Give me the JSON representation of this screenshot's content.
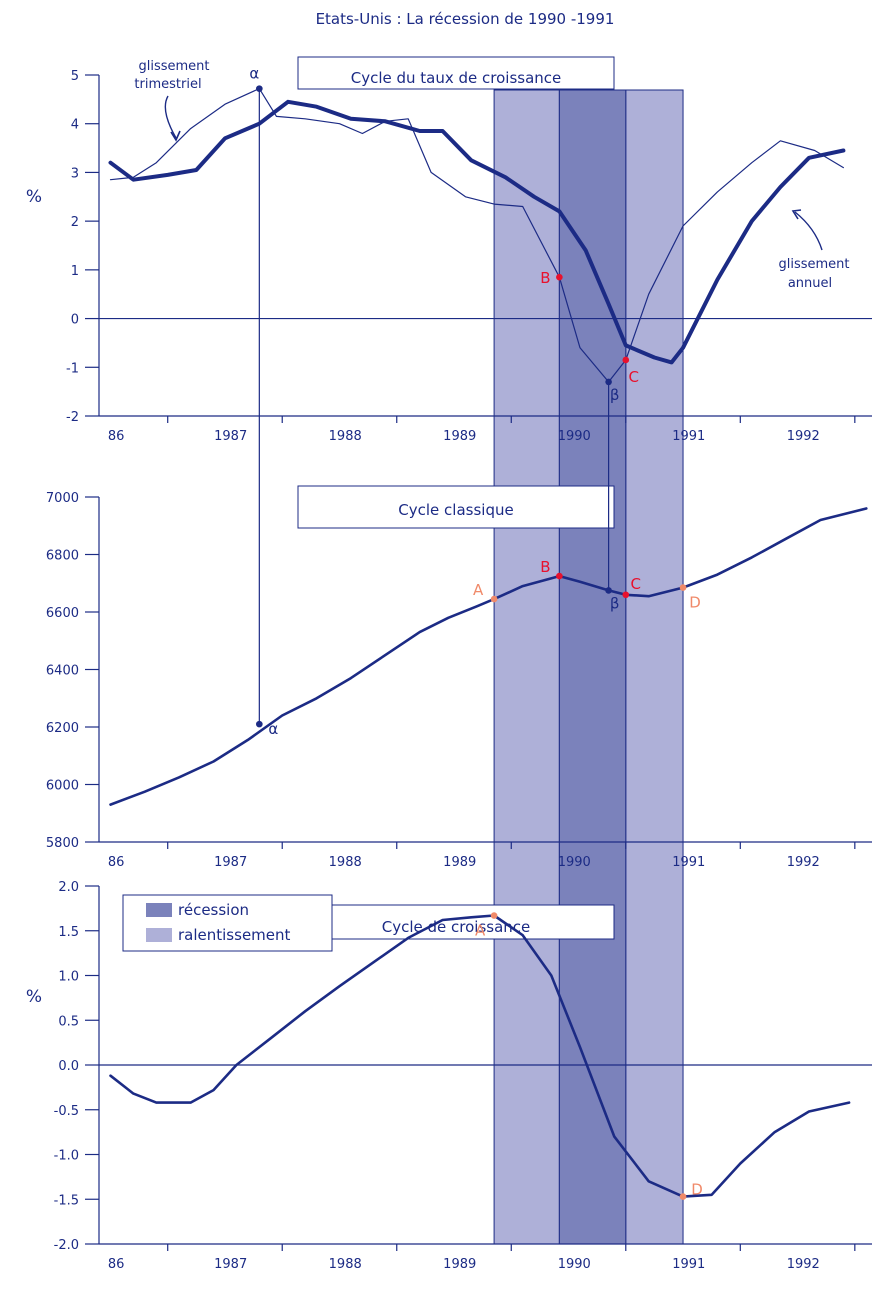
{
  "title": "Etats-Unis : La récession de 1990 -1991",
  "colors": {
    "axis": "#1c2b85",
    "line": "#1c2b85",
    "recession": "#7b82bb",
    "slowdown": "#aeb0d8",
    "point_red": "#e8112d",
    "point_orange": "#f08a6a"
  },
  "legend": {
    "recession": "récession",
    "slowdown": "ralentissement"
  },
  "chart_data": [
    {
      "type": "line",
      "title": "Cycle du taux de croissance",
      "ylabel": "%",
      "ylim": [
        -2,
        5
      ],
      "xlim": [
        1985.9,
        1992.65
      ],
      "yticks": [
        "5",
        "4",
        "3",
        "2",
        "1",
        "0",
        "-1",
        "-2"
      ],
      "xticks": [
        "86",
        "1987",
        "1988",
        "1989",
        "1990",
        "1991",
        "1992"
      ],
      "recession": [
        1989.92,
        1990.5
      ],
      "slowdown": [
        [
          1989.35,
          1989.92
        ],
        [
          1990.5,
          1991.0
        ]
      ],
      "annotations": [
        "glissement trimestriel",
        "glissement annuel"
      ],
      "series": [
        {
          "name": "glissement trimestriel",
          "x": [
            1986.0,
            1986.2,
            1986.4,
            1986.7,
            1987.0,
            1987.3,
            1987.45,
            1987.7,
            1988.0,
            1988.2,
            1988.4,
            1988.6,
            1988.8,
            1989.1,
            1989.35,
            1989.6,
            1989.92,
            1990.1,
            1990.35,
            1990.5,
            1990.7,
            1991.0,
            1991.3,
            1991.6,
            1991.85,
            1992.15,
            1992.4
          ],
          "values": [
            2.85,
            2.9,
            3.2,
            3.9,
            4.4,
            4.72,
            4.15,
            4.1,
            4.0,
            3.8,
            4.05,
            4.1,
            3.0,
            2.5,
            2.35,
            2.3,
            0.85,
            -0.6,
            -1.3,
            -0.85,
            0.5,
            1.9,
            2.6,
            3.2,
            3.65,
            3.45,
            3.1
          ]
        },
        {
          "name": "glissement annuel",
          "x": [
            1986.0,
            1986.2,
            1986.5,
            1986.75,
            1987.0,
            1987.3,
            1987.55,
            1987.8,
            1988.1,
            1988.4,
            1988.7,
            1988.9,
            1989.15,
            1989.45,
            1989.7,
            1989.92,
            1990.15,
            1990.35,
            1990.5,
            1990.75,
            1990.9,
            1991.0,
            1991.3,
            1991.6,
            1991.85,
            1992.1,
            1992.4
          ],
          "values": [
            3.2,
            2.85,
            2.95,
            3.05,
            3.7,
            4.0,
            4.45,
            4.35,
            4.1,
            4.05,
            3.85,
            3.85,
            3.25,
            2.9,
            2.5,
            2.2,
            1.4,
            0.3,
            -0.55,
            -0.8,
            -0.9,
            -0.6,
            0.8,
            2.0,
            2.7,
            3.3,
            3.45
          ]
        }
      ],
      "points": [
        {
          "label": "α",
          "x": 1987.3,
          "y": 4.72
        },
        {
          "label": "B",
          "x": 1989.92,
          "y": 0.85
        },
        {
          "label": "β",
          "x": 1990.35,
          "y": -1.3
        },
        {
          "label": "C",
          "x": 1990.5,
          "y": -0.85
        }
      ]
    },
    {
      "type": "line",
      "title": "Cycle classique",
      "ylim": [
        5800,
        7000
      ],
      "xlim": [
        1985.9,
        1992.65
      ],
      "yticks": [
        "7000",
        "6800",
        "6600",
        "6400",
        "6200",
        "6000",
        "5800"
      ],
      "xticks": [
        "86",
        "1987",
        "1988",
        "1989",
        "1990",
        "1991",
        "1992"
      ],
      "recession": [
        1989.92,
        1990.5
      ],
      "slowdown": [
        [
          1989.35,
          1989.92
        ],
        [
          1990.5,
          1991.0
        ]
      ],
      "series": [
        {
          "x": [
            1986.0,
            1986.3,
            1986.6,
            1986.9,
            1987.2,
            1987.5,
            1987.8,
            1988.1,
            1988.4,
            1988.7,
            1988.95,
            1989.2,
            1989.35,
            1989.6,
            1989.92,
            1990.1,
            1990.35,
            1990.5,
            1990.7,
            1991.0,
            1991.3,
            1991.6,
            1991.9,
            1992.2,
            1992.6
          ],
          "values": [
            5930,
            5975,
            6025,
            6080,
            6155,
            6240,
            6300,
            6370,
            6450,
            6530,
            6580,
            6620,
            6645,
            6690,
            6725,
            6705,
            6675,
            6660,
            6655,
            6685,
            6730,
            6790,
            6855,
            6920,
            6960
          ]
        }
      ],
      "points": [
        {
          "label": "α",
          "x": 1987.3,
          "y": 6210
        },
        {
          "label": "A",
          "x": 1989.35,
          "y": 6645
        },
        {
          "label": "B",
          "x": 1989.92,
          "y": 6725
        },
        {
          "label": "β",
          "x": 1990.35,
          "y": 6675
        },
        {
          "label": "C",
          "x": 1990.5,
          "y": 6660
        },
        {
          "label": "D",
          "x": 1991.0,
          "y": 6685
        }
      ]
    },
    {
      "type": "line",
      "title": "Cycle de croissance",
      "ylabel": "%",
      "ylim": [
        -2.0,
        2.0
      ],
      "xlim": [
        1985.9,
        1992.65
      ],
      "yticks": [
        "2.0",
        "1.5",
        "1.0",
        "0.5",
        "0.0",
        "-0.5",
        "-1.0",
        "-1.5",
        "-2.0"
      ],
      "xticks": [
        "86",
        "1987",
        "1988",
        "1989",
        "1990",
        "1991",
        "1992"
      ],
      "recession": [
        1989.92,
        1990.5
      ],
      "slowdown": [
        [
          1989.35,
          1989.92
        ],
        [
          1990.5,
          1991.0
        ]
      ],
      "series": [
        {
          "x": [
            1986.0,
            1986.2,
            1986.4,
            1986.7,
            1986.9,
            1987.1,
            1987.4,
            1987.7,
            1988.0,
            1988.3,
            1988.6,
            1988.9,
            1989.15,
            1989.35,
            1989.6,
            1989.85,
            1990.1,
            1990.4,
            1990.7,
            1991.0,
            1991.25,
            1991.5,
            1991.8,
            1992.1,
            1992.45
          ],
          "values": [
            -0.12,
            -0.32,
            -0.42,
            -0.42,
            -0.28,
            0.0,
            0.3,
            0.6,
            0.88,
            1.15,
            1.42,
            1.62,
            1.65,
            1.67,
            1.45,
            1.0,
            0.2,
            -0.8,
            -1.3,
            -1.47,
            -1.45,
            -1.1,
            -0.75,
            -0.52,
            -0.42
          ]
        }
      ],
      "points": [
        {
          "label": "A",
          "x": 1989.35,
          "y": 1.67
        },
        {
          "label": "D",
          "x": 1991.0,
          "y": -1.47
        }
      ]
    }
  ]
}
